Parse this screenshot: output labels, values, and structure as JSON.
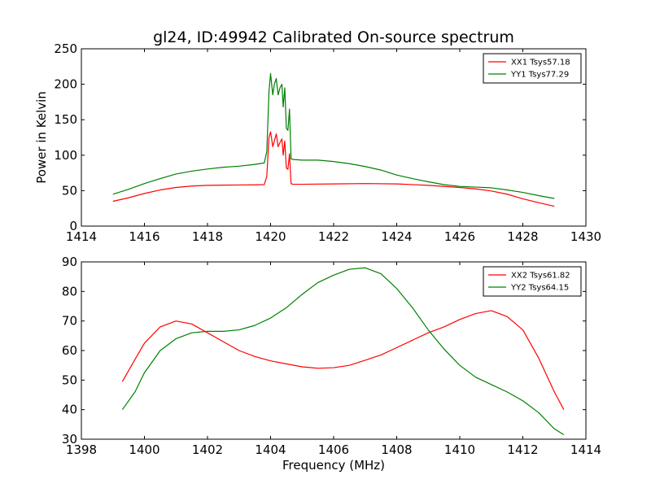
{
  "chart_data": [
    {
      "type": "line",
      "title": "gl24, ID:49942 Calibrated On-source spectrum",
      "xlabel": "",
      "ylabel": "Power in Kelvin",
      "xlim": [
        1414,
        1430
      ],
      "ylim": [
        0,
        250
      ],
      "xticks": [
        1414,
        1416,
        1418,
        1420,
        1422,
        1424,
        1426,
        1428,
        1430
      ],
      "yticks": [
        0,
        50,
        100,
        150,
        200,
        250
      ],
      "legend_position": "top-right",
      "grid": false,
      "series": [
        {
          "name": "XX1 Tsys57.18",
          "color": "#ff0000",
          "points": [
            [
              1415.0,
              35
            ],
            [
              1415.5,
              40
            ],
            [
              1416.0,
              46
            ],
            [
              1416.5,
              51
            ],
            [
              1417.0,
              54.5
            ],
            [
              1417.5,
              56.5
            ],
            [
              1418.0,
              57.5
            ],
            [
              1418.5,
              57.8
            ],
            [
              1419.0,
              58
            ],
            [
              1419.5,
              58.2
            ],
            [
              1419.8,
              58.5
            ],
            [
              1419.88,
              70
            ],
            [
              1419.95,
              125
            ],
            [
              1420.0,
              133
            ],
            [
              1420.07,
              112
            ],
            [
              1420.12,
              120
            ],
            [
              1420.18,
              130
            ],
            [
              1420.24,
              112
            ],
            [
              1420.3,
              118
            ],
            [
              1420.36,
              123
            ],
            [
              1420.4,
              100
            ],
            [
              1420.45,
              120
            ],
            [
              1420.5,
              82
            ],
            [
              1420.55,
              80
            ],
            [
              1420.6,
              102
            ],
            [
              1420.65,
              60
            ],
            [
              1420.7,
              59
            ],
            [
              1421.0,
              59
            ],
            [
              1422.0,
              59.5
            ],
            [
              1423.0,
              60
            ],
            [
              1424.0,
              59.5
            ],
            [
              1425.0,
              57.5
            ],
            [
              1426.0,
              54.5
            ],
            [
              1426.5,
              52.5
            ],
            [
              1427.0,
              49.5
            ],
            [
              1427.5,
              45
            ],
            [
              1428.0,
              38.5
            ],
            [
              1428.5,
              33
            ],
            [
              1429.0,
              28
            ]
          ]
        },
        {
          "name": "YY1 Tsys77.29",
          "color": "#008000",
          "points": [
            [
              1415.0,
              45
            ],
            [
              1415.5,
              52
            ],
            [
              1416.0,
              60
            ],
            [
              1416.5,
              67
            ],
            [
              1417.0,
              73.5
            ],
            [
              1417.5,
              77.5
            ],
            [
              1418.0,
              80.5
            ],
            [
              1418.5,
              83
            ],
            [
              1419.0,
              84.5
            ],
            [
              1419.5,
              87
            ],
            [
              1419.8,
              89
            ],
            [
              1419.88,
              105
            ],
            [
              1419.95,
              190
            ],
            [
              1420.0,
              215
            ],
            [
              1420.07,
              185
            ],
            [
              1420.12,
              200
            ],
            [
              1420.18,
              208
            ],
            [
              1420.24,
              185
            ],
            [
              1420.3,
              195
            ],
            [
              1420.36,
              200
            ],
            [
              1420.4,
              168
            ],
            [
              1420.45,
              195
            ],
            [
              1420.5,
              138
            ],
            [
              1420.55,
              135
            ],
            [
              1420.6,
              165
            ],
            [
              1420.65,
              95
            ],
            [
              1420.7,
              94
            ],
            [
              1421.0,
              93
            ],
            [
              1421.5,
              93
            ],
            [
              1422.0,
              91
            ],
            [
              1422.5,
              88
            ],
            [
              1423.0,
              84
            ],
            [
              1423.5,
              79
            ],
            [
              1424.0,
              72
            ],
            [
              1424.5,
              67
            ],
            [
              1425.0,
              62.5
            ],
            [
              1425.5,
              58.5
            ],
            [
              1426.0,
              56
            ],
            [
              1426.5,
              55
            ],
            [
              1427.0,
              54
            ],
            [
              1427.5,
              51
            ],
            [
              1428.0,
              47.5
            ],
            [
              1428.5,
              43
            ],
            [
              1429.0,
              39
            ]
          ]
        }
      ]
    },
    {
      "type": "line",
      "title": "",
      "xlabel": "Frequency (MHz)",
      "ylabel": "",
      "xlim": [
        1398,
        1414
      ],
      "ylim": [
        30,
        90
      ],
      "xticks": [
        1398,
        1400,
        1402,
        1404,
        1406,
        1408,
        1410,
        1412,
        1414
      ],
      "yticks": [
        30,
        40,
        50,
        60,
        70,
        80,
        90
      ],
      "legend_position": "top-right",
      "grid": false,
      "series": [
        {
          "name": "XX2 Tsys61.82",
          "color": "#ff0000",
          "points": [
            [
              1399.3,
              49.5
            ],
            [
              1399.7,
              57
            ],
            [
              1400.0,
              62.5
            ],
            [
              1400.5,
              68
            ],
            [
              1401.0,
              70
            ],
            [
              1401.5,
              69
            ],
            [
              1402.0,
              66
            ],
            [
              1402.5,
              63
            ],
            [
              1403.0,
              60
            ],
            [
              1403.5,
              58
            ],
            [
              1404.0,
              56.5
            ],
            [
              1404.5,
              55.5
            ],
            [
              1405.0,
              54.5
            ],
            [
              1405.5,
              54
            ],
            [
              1406.0,
              54.2
            ],
            [
              1406.5,
              55
            ],
            [
              1407.0,
              56.7
            ],
            [
              1407.5,
              58.5
            ],
            [
              1408.0,
              61
            ],
            [
              1408.5,
              63.5
            ],
            [
              1409.0,
              66
            ],
            [
              1409.5,
              68
            ],
            [
              1410.0,
              70.5
            ],
            [
              1410.5,
              72.5
            ],
            [
              1411.0,
              73.5
            ],
            [
              1411.5,
              71.5
            ],
            [
              1412.0,
              67
            ],
            [
              1412.5,
              57.5
            ],
            [
              1413.0,
              46
            ],
            [
              1413.3,
              40
            ]
          ]
        },
        {
          "name": "YY2 Tsys64.15",
          "color": "#008000",
          "points": [
            [
              1399.3,
              40
            ],
            [
              1399.7,
              46
            ],
            [
              1400.0,
              52.5
            ],
            [
              1400.5,
              60
            ],
            [
              1401.0,
              64
            ],
            [
              1401.5,
              66
            ],
            [
              1402.0,
              66.5
            ],
            [
              1402.5,
              66.5
            ],
            [
              1403.0,
              67
            ],
            [
              1403.5,
              68.5
            ],
            [
              1404.0,
              71
            ],
            [
              1404.5,
              74.5
            ],
            [
              1405.0,
              79
            ],
            [
              1405.5,
              83
            ],
            [
              1406.0,
              85.5
            ],
            [
              1406.5,
              87.5
            ],
            [
              1407.0,
              88
            ],
            [
              1407.5,
              86
            ],
            [
              1408.0,
              81
            ],
            [
              1408.5,
              74.5
            ],
            [
              1409.0,
              67
            ],
            [
              1409.5,
              60.5
            ],
            [
              1410.0,
              55
            ],
            [
              1410.5,
              51
            ],
            [
              1411.0,
              48.5
            ],
            [
              1411.5,
              46
            ],
            [
              1412.0,
              43
            ],
            [
              1412.5,
              39
            ],
            [
              1413.0,
              33.5
            ],
            [
              1413.3,
              31.5
            ]
          ]
        }
      ]
    }
  ]
}
